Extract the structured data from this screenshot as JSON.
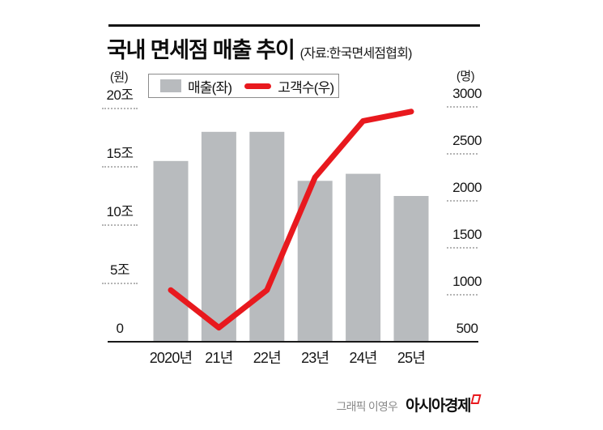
{
  "header": {
    "title": "국내 면세점 매출 추이",
    "source": "(자료:한국면세점협회)"
  },
  "legend": {
    "bar_label": "매출(좌)",
    "line_label": "고객수(우)"
  },
  "axes": {
    "left_unit": "(원)",
    "right_unit": "(명)"
  },
  "chart_data": {
    "type": "bar",
    "subtype": "bar+line combo, dual axis",
    "title": "국내 면세점 매출 추이",
    "source": "자료:한국면세점협회",
    "categories": [
      "2020년",
      "21년",
      "22년",
      "23년",
      "24년",
      "25년"
    ],
    "series": [
      {
        "name": "매출(좌)",
        "type": "bar",
        "axis": "left",
        "unit": "조원",
        "values": [
          15.5,
          18,
          18,
          13.8,
          14.4,
          12.5
        ]
      },
      {
        "name": "고객수(우)",
        "type": "line",
        "axis": "right",
        "unit": "명",
        "values": [
          1050,
          650,
          1050,
          2250,
          2850,
          2950
        ]
      }
    ],
    "left_axis": {
      "label": "(원)",
      "ticks": [
        "20조",
        "15조",
        "10조",
        "5조",
        "0"
      ],
      "range": [
        0,
        20
      ]
    },
    "right_axis": {
      "label": "(명)",
      "ticks": [
        "3000",
        "2500",
        "2000",
        "1500",
        "1000",
        "500"
      ],
      "range": [
        500,
        3000
      ]
    },
    "legend_position": "top",
    "grid": "dotted tick marks beside axis labels only",
    "colors": {
      "bar": "#b8bbbe",
      "line": "#e8191e",
      "axis": "#1a1a1a"
    }
  },
  "footer": {
    "credit": "그래픽 이영우",
    "brand": "아시아경제"
  }
}
